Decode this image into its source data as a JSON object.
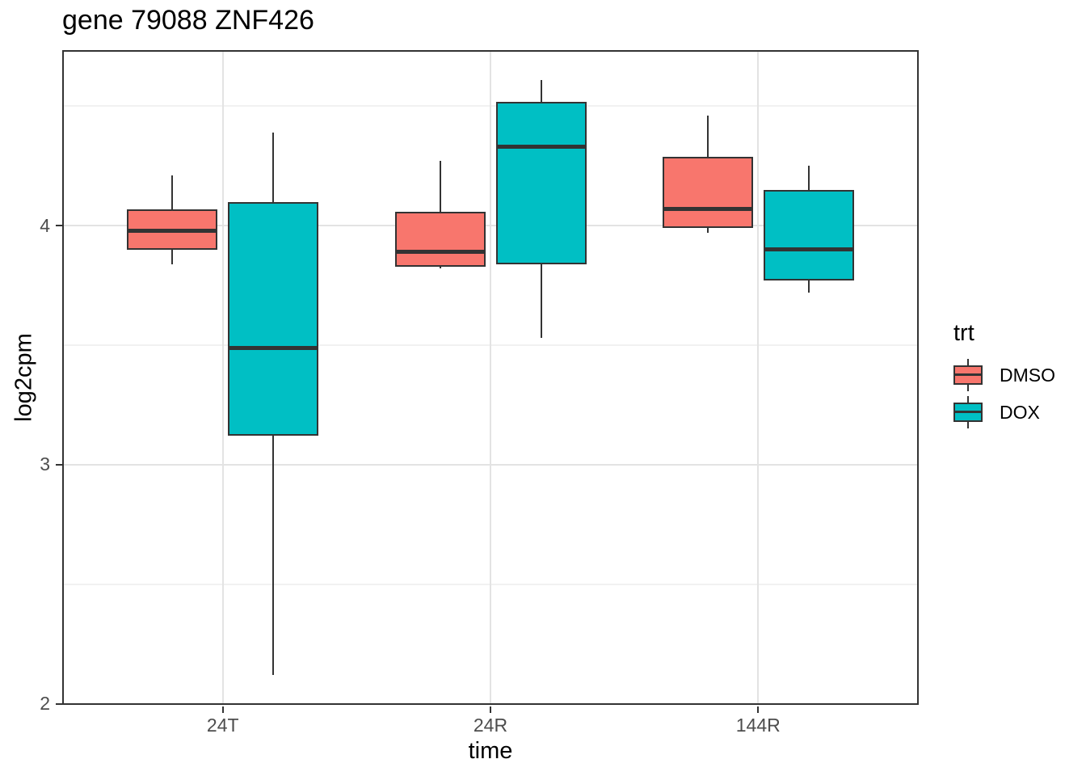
{
  "title": "gene 79088 ZNF426",
  "axes": {
    "x": {
      "title": "time",
      "tick_labels": [
        "24T",
        "24R",
        "144R"
      ]
    },
    "y": {
      "title": "log2cpm",
      "tick_labels": [
        "2",
        "3",
        "4"
      ],
      "tick_values": [
        2,
        3,
        4
      ],
      "minor_tick_values": [
        2.5,
        3.5,
        4.5
      ],
      "range": [
        1.995,
        4.735
      ]
    }
  },
  "legend": {
    "title": "trt",
    "entries": [
      {
        "label": "DMSO",
        "color": "#F8766D"
      },
      {
        "label": "DOX",
        "color": "#00BFC4"
      }
    ]
  },
  "colors": {
    "box_outline": "#333333",
    "panel_border": "#333333",
    "grid_major": "#e3e3e3",
    "grid_minor": "#f1f1f1",
    "tick_text": "#4d4d4d",
    "dmso": "#F8766D",
    "dox": "#00BFC4"
  },
  "chart_data": {
    "type": "boxplot",
    "title": "gene 79088 ZNF426",
    "xlabel": "time",
    "ylabel": "log2cpm",
    "categories": [
      "24T",
      "24R",
      "144R"
    ],
    "ylim": [
      1.995,
      4.735
    ],
    "y_major_ticks": [
      2,
      3,
      4
    ],
    "y_minor_gridlines": [
      2.5,
      3.5,
      4.5
    ],
    "grid": true,
    "legend_position": "right",
    "series": [
      {
        "name": "DMSO",
        "color": "#F8766D",
        "boxes": [
          {
            "whisker_low": 3.84,
            "q1": 3.9,
            "median": 3.98,
            "q3": 4.07,
            "whisker_high": 4.21
          },
          {
            "whisker_low": 3.82,
            "q1": 3.83,
            "median": 3.89,
            "q3": 4.06,
            "whisker_high": 4.27
          },
          {
            "whisker_low": 3.97,
            "q1": 3.99,
            "median": 4.07,
            "q3": 4.29,
            "whisker_high": 4.46
          }
        ]
      },
      {
        "name": "DOX",
        "color": "#00BFC4",
        "boxes": [
          {
            "whisker_low": 2.12,
            "q1": 3.12,
            "median": 3.49,
            "q3": 4.1,
            "whisker_high": 4.39
          },
          {
            "whisker_low": 3.53,
            "q1": 3.84,
            "median": 4.33,
            "q3": 4.52,
            "whisker_high": 4.61
          },
          {
            "whisker_low": 3.72,
            "q1": 3.77,
            "median": 3.9,
            "q3": 4.15,
            "whisker_high": 4.25
          }
        ]
      }
    ]
  }
}
